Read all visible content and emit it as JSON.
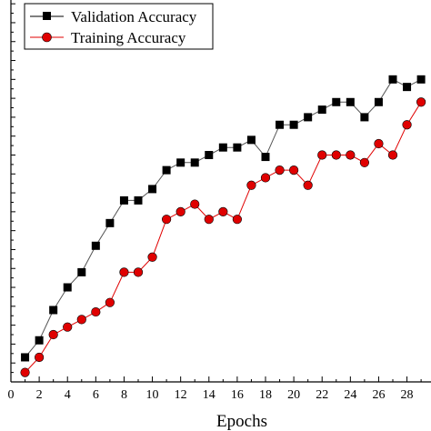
{
  "chart_data": {
    "type": "line",
    "title": "",
    "xlabel": "Epochs",
    "ylabel": "",
    "xlim": [
      0,
      29.7
    ],
    "ylim": [
      0,
      20.2
    ],
    "x_ticks": [
      0,
      2,
      4,
      6,
      8,
      10,
      12,
      14,
      16,
      18,
      20,
      22,
      24,
      26,
      28
    ],
    "grid": false,
    "legend_position": "top-left",
    "series": [
      {
        "name": "Validation Accuracy",
        "marker": "square",
        "marker_color": "#000000",
        "line_color": "#555555",
        "x": [
          1,
          2,
          3,
          4,
          5,
          6,
          7,
          8,
          9,
          10,
          11,
          12,
          13,
          14,
          15,
          16,
          17,
          18,
          19,
          20,
          21,
          22,
          23,
          24,
          25,
          26,
          27,
          28,
          29
        ],
        "y": [
          1.3,
          2.2,
          3.8,
          5.0,
          5.8,
          7.2,
          8.4,
          9.6,
          9.6,
          10.2,
          11.2,
          11.6,
          11.6,
          12.0,
          12.4,
          12.4,
          12.8,
          11.9,
          13.6,
          13.6,
          14.0,
          14.4,
          14.8,
          14.8,
          14.0,
          14.8,
          16.0,
          15.6,
          16.0
        ]
      },
      {
        "name": "Training Accuracy",
        "marker": "circle",
        "marker_color": "#e00000",
        "line_color": "#e00000",
        "x": [
          1,
          2,
          3,
          4,
          5,
          6,
          7,
          8,
          9,
          10,
          11,
          12,
          13,
          14,
          15,
          16,
          17,
          18,
          19,
          20,
          21,
          22,
          23,
          24,
          25,
          26,
          27,
          28,
          29
        ],
        "y": [
          0.5,
          1.3,
          2.5,
          2.9,
          3.3,
          3.7,
          4.2,
          5.8,
          5.8,
          6.6,
          8.6,
          9.0,
          9.4,
          8.6,
          9.0,
          8.6,
          10.4,
          10.8,
          11.2,
          11.2,
          10.4,
          12.0,
          12.0,
          12.0,
          11.6,
          12.6,
          12.0,
          13.6,
          14.8
        ]
      }
    ]
  }
}
